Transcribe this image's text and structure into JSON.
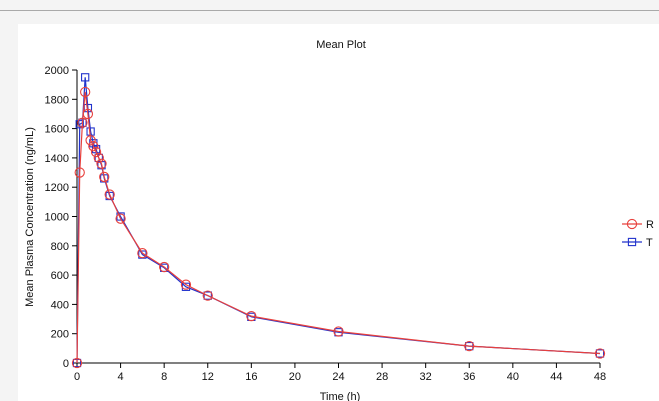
{
  "chart_data": {
    "type": "line",
    "title": "Mean Plot",
    "xlabel": "Time (h)",
    "ylabel": "Mean Plasma Concentration (ng/mL)",
    "xlim": [
      0,
      48
    ],
    "ylim": [
      0,
      2000
    ],
    "x_ticks": [
      0,
      4,
      8,
      12,
      16,
      20,
      24,
      28,
      32,
      36,
      40,
      44,
      48
    ],
    "y_ticks": [
      0,
      200,
      400,
      600,
      800,
      1000,
      1200,
      1400,
      1600,
      1800,
      2000
    ],
    "grid": false,
    "legend_position": "right",
    "series": [
      {
        "name": "R",
        "color": "#e8403c",
        "marker": "circle",
        "points": [
          [
            0,
            0
          ],
          [
            0.25,
            1300
          ],
          [
            0.5,
            1640
          ],
          [
            0.75,
            1850
          ],
          [
            1,
            1700
          ],
          [
            1.25,
            1520
          ],
          [
            1.5,
            1480
          ],
          [
            1.75,
            1440
          ],
          [
            2,
            1400
          ],
          [
            2.25,
            1360
          ],
          [
            2.5,
            1270
          ],
          [
            3,
            1150
          ],
          [
            4,
            985
          ],
          [
            6,
            750
          ],
          [
            8,
            655
          ],
          [
            10,
            535
          ],
          [
            12,
            460
          ],
          [
            16,
            320
          ],
          [
            24,
            215
          ],
          [
            36,
            115
          ],
          [
            48,
            65
          ]
        ]
      },
      {
        "name": "T",
        "color": "#2233cc",
        "marker": "square",
        "points": [
          [
            0,
            0
          ],
          [
            0.25,
            1630
          ],
          [
            0.5,
            1640
          ],
          [
            0.75,
            1950
          ],
          [
            1,
            1740
          ],
          [
            1.25,
            1580
          ],
          [
            1.5,
            1500
          ],
          [
            1.75,
            1460
          ],
          [
            2,
            1400
          ],
          [
            2.25,
            1350
          ],
          [
            2.5,
            1260
          ],
          [
            3,
            1140
          ],
          [
            4,
            1000
          ],
          [
            6,
            740
          ],
          [
            8,
            650
          ],
          [
            10,
            520
          ],
          [
            12,
            460
          ],
          [
            16,
            315
          ],
          [
            24,
            210
          ],
          [
            36,
            115
          ],
          [
            48,
            65
          ]
        ]
      }
    ]
  }
}
